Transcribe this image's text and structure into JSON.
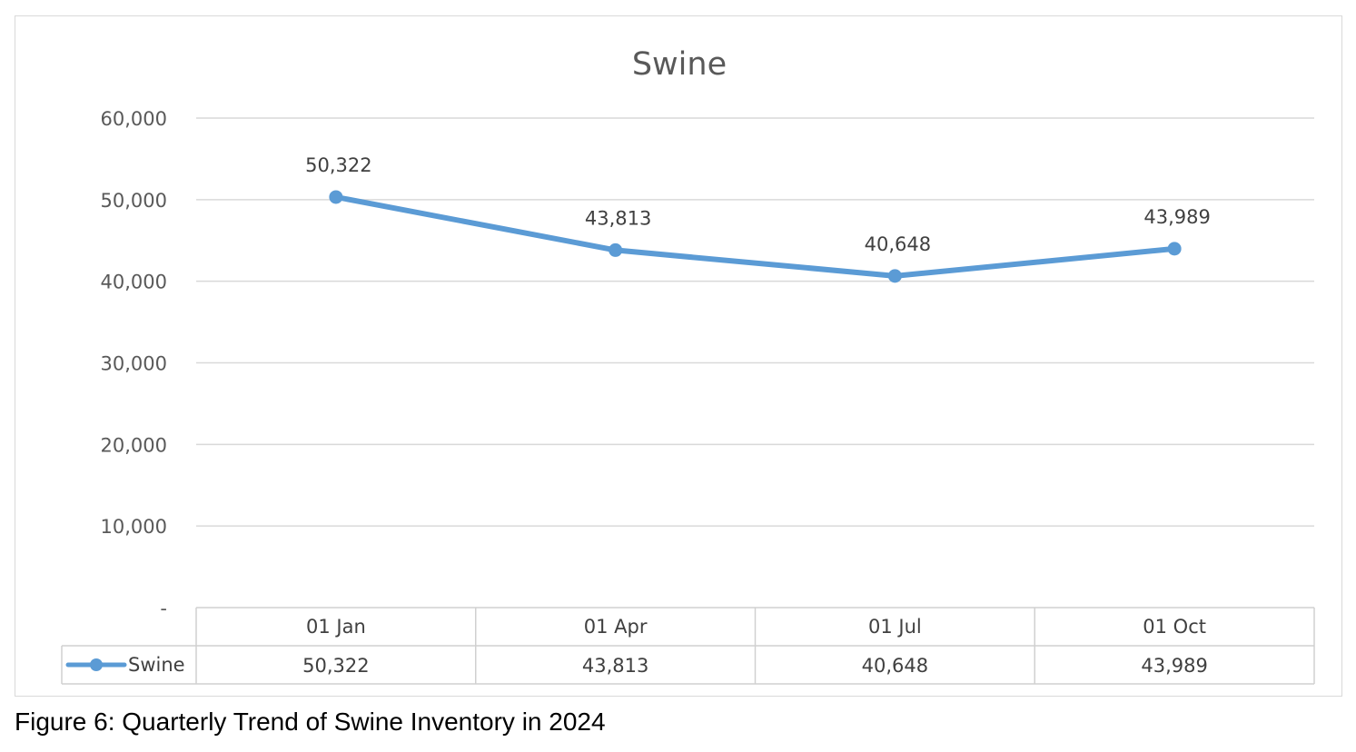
{
  "caption": "Figure 6: Quarterly Trend of Swine Inventory in 2024",
  "chart_data": {
    "type": "line",
    "title": "Swine",
    "xlabel": "",
    "ylabel": "",
    "categories": [
      "01 Jan",
      "01 Apr",
      "01 Jul",
      "01 Oct"
    ],
    "series": [
      {
        "name": "Swine",
        "values": [
          50322,
          43813,
          40648,
          43989
        ],
        "value_labels": [
          "50,322",
          "43,813",
          "40,648",
          "43,989"
        ],
        "color": "#5b9bd5"
      }
    ],
    "ylim": [
      0,
      60000
    ],
    "yticks": [
      0,
      10000,
      20000,
      30000,
      40000,
      50000,
      60000
    ],
    "ytick_labels": [
      "-",
      "10,000",
      "20,000",
      "30,000",
      "40,000",
      "50,000",
      "60,000"
    ],
    "grid": true,
    "data_labels": true,
    "data_table": true,
    "legend": "data-table-left"
  }
}
